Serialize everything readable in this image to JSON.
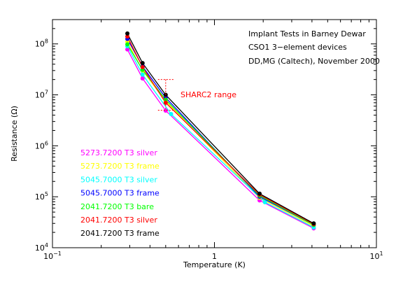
{
  "chart_data": {
    "type": "line",
    "x_scale": "log",
    "y_scale": "log",
    "xlim": [
      0.1,
      10
    ],
    "ylim": [
      10000,
      300000000
    ],
    "xlabel": "Temperature (K)",
    "ylabel": "Resistance (Ω)",
    "x_ticks": [
      {
        "value": 0.1,
        "base": "10",
        "exp": "−1"
      },
      {
        "value": 1,
        "label": "1"
      },
      {
        "value": 10,
        "base": "10",
        "exp": "1"
      }
    ],
    "y_ticks": [
      {
        "value": 10000,
        "base": "10",
        "exp": "4"
      },
      {
        "value": 100000,
        "base": "10",
        "exp": "5"
      },
      {
        "value": 1000000,
        "base": "10",
        "exp": "6"
      },
      {
        "value": 10000000,
        "base": "10",
        "exp": "7"
      },
      {
        "value": 100000000,
        "base": "10",
        "exp": "8"
      }
    ],
    "annotation_lines": [
      "Implant Tests in Barney Dewar",
      "CSO1 3−element devices",
      "DD,MG (Caltech), November 2000"
    ],
    "sharc2_range": {
      "label": "SHARC2 range",
      "x": 0.5,
      "y_low": 5000000,
      "y_high": 20000000,
      "color": "#ff0000"
    },
    "legend_position": "lower-left",
    "series": [
      {
        "name": "5273.7200 T3 silver",
        "color": "#ff00ff",
        "x": [
          0.29,
          0.36,
          0.5,
          1.9,
          4.1
        ],
        "y": [
          78000000,
          21000000,
          4900000,
          85000,
          24000
        ]
      },
      {
        "name": "5273.7200 T3 frame",
        "color": "#ffff00",
        "x": [
          0.29,
          0.36,
          0.5,
          1.9,
          4.1
        ],
        "y": [
          110000000,
          30000000,
          7500000,
          95000,
          26500
        ]
      },
      {
        "name": "5045.7000 T3 silver",
        "color": "#00ffff",
        "x": [
          0.29,
          0.36,
          0.54,
          2.05,
          4.1
        ],
        "y": [
          90000000,
          25000000,
          4200000,
          78000,
          25000
        ]
      },
      {
        "name": "5045.7000 T3 frame",
        "color": "#0000ff",
        "x": [
          0.29,
          0.36,
          0.5,
          1.9,
          4.1
        ],
        "y": [
          125000000,
          36000000,
          8800000,
          100000,
          28000
        ]
      },
      {
        "name": "2041.7200 T3 bare",
        "color": "#00ff00",
        "x": [
          0.29,
          0.36,
          0.5,
          1.9,
          4.1
        ],
        "y": [
          98000000,
          31000000,
          8000000,
          105000,
          28000
        ]
      },
      {
        "name": "2041.7200 T3 silver",
        "color": "#ff0000",
        "x": [
          0.29,
          0.36,
          0.5,
          1.9,
          4.1
        ],
        "y": [
          140000000,
          35000000,
          7000000,
          110000,
          29000
        ]
      },
      {
        "name": "2041.7200 T3 frame",
        "color": "#000000",
        "x": [
          0.29,
          0.36,
          0.5,
          1.9,
          4.1
        ],
        "y": [
          160000000,
          42000000,
          10000000,
          115000,
          30000
        ]
      }
    ]
  }
}
